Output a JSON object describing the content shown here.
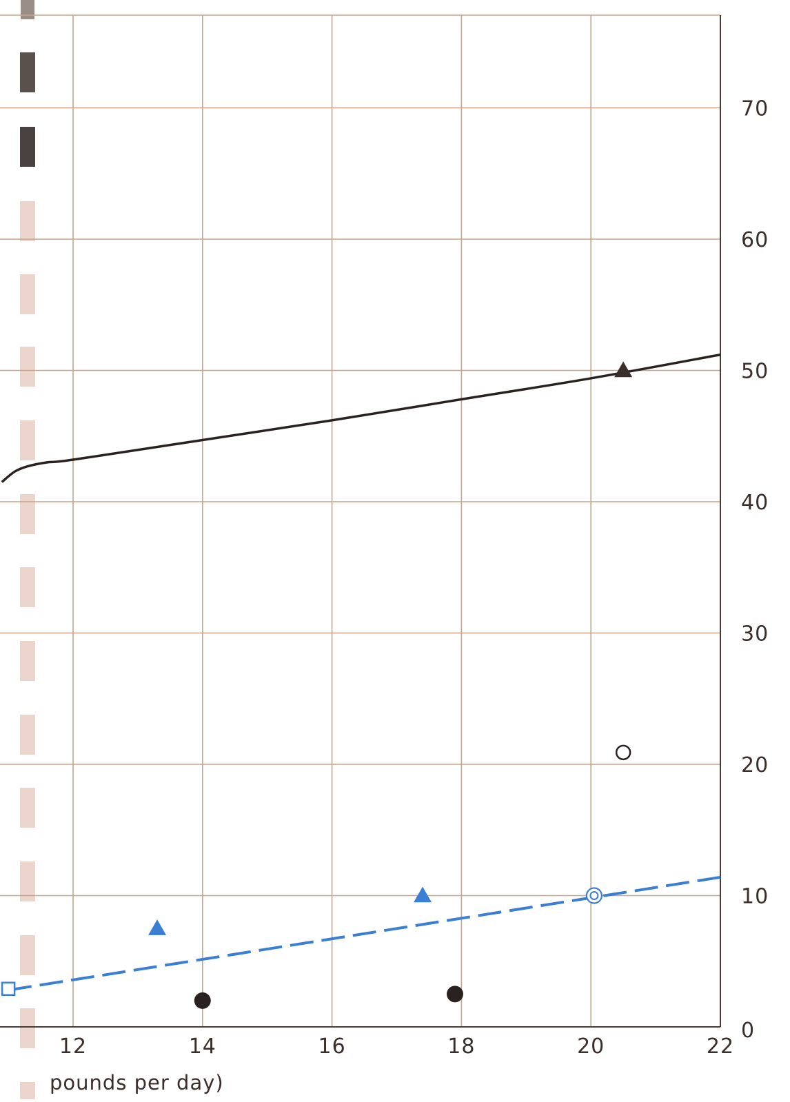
{
  "chart_data": {
    "type": "line",
    "title": "",
    "xlabel": "pounds per day)",
    "ylabel": "",
    "xlim": [
      10.9,
      22
    ],
    "ylim": [
      0,
      78
    ],
    "x_ticks": [
      12,
      14,
      16,
      18,
      20,
      22
    ],
    "y_ticks": [
      0,
      10,
      20,
      30,
      40,
      50,
      60,
      70
    ],
    "y_tick_labels": [
      "0",
      "10",
      "20",
      "30",
      "40",
      "50",
      "60",
      "70"
    ],
    "y_axis_side": "right",
    "grid": true,
    "colors": {
      "grid": "#c9a48a",
      "frame": "#4a3a32",
      "dark": "#2a2220",
      "blue": "#3b7fd4",
      "margin_strip": "#ecd5cd"
    },
    "series": [
      {
        "style": "solid-curve",
        "color": "#2a2220",
        "points": [
          [
            10.9,
            41.5
          ],
          [
            11.1,
            42.3
          ],
          [
            11.3,
            42.7
          ],
          [
            11.6,
            43.0
          ],
          [
            12.0,
            43.2
          ],
          [
            14.0,
            44.7
          ],
          [
            16.0,
            46.2
          ],
          [
            18.0,
            47.8
          ],
          [
            20.0,
            49.4
          ],
          [
            22.0,
            51.2
          ]
        ]
      },
      {
        "style": "dashed-line",
        "color": "#3b7fd4",
        "points": [
          [
            11.0,
            2.8
          ],
          [
            22.0,
            11.4
          ]
        ]
      }
    ],
    "markers": [
      {
        "shape": "triangle-filled",
        "color": "#3a2e2a",
        "x": 20.5,
        "y": 50.0
      },
      {
        "shape": "circle-open",
        "color": "#2a2220",
        "x": 20.5,
        "y": 20.9
      },
      {
        "shape": "triangle-filled",
        "color": "#3b7fd4",
        "x": 17.4,
        "y": 10.0
      },
      {
        "shape": "triangle-filled",
        "color": "#3b7fd4",
        "x": 13.3,
        "y": 7.5
      },
      {
        "shape": "double-circle-open",
        "color": "#3b7fd4",
        "x": 20.05,
        "y": 10.0
      },
      {
        "shape": "square-open",
        "color": "#3b7fd4",
        "x": 11.0,
        "y": 2.9
      },
      {
        "shape": "circle-filled",
        "color": "#2a2220",
        "x": 14.0,
        "y": 2.0
      },
      {
        "shape": "circle-filled",
        "color": "#2a2220",
        "x": 17.9,
        "y": 2.5
      }
    ]
  }
}
